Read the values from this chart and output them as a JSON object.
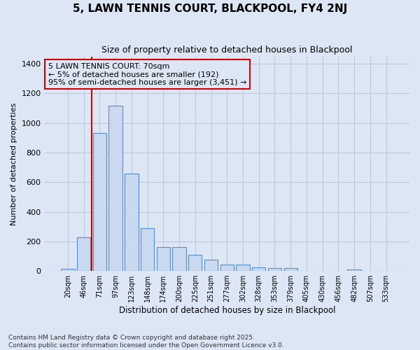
{
  "title": "5, LAWN TENNIS COURT, BLACKPOOL, FY4 2NJ",
  "subtitle": "Size of property relative to detached houses in Blackpool",
  "xlabel": "Distribution of detached houses by size in Blackpool",
  "ylabel": "Number of detached properties",
  "footnote": "Contains HM Land Registry data © Crown copyright and database right 2025.\nContains public sector information licensed under the Open Government Licence v3.0.",
  "bar_color": "#c9d9f0",
  "bar_edge_color": "#5b8ec4",
  "grid_color": "#c0c8d8",
  "background_color": "#dce6f5",
  "annotation_line_color": "#cc0000",
  "annotation_box_color": "#cc0000",
  "annotation_text": "5 LAWN TENNIS COURT: 70sqm\n← 5% of detached houses are smaller (192)\n95% of semi-detached houses are larger (3,451) →",
  "property_bin_index": 2,
  "categories": [
    "20sqm",
    "46sqm",
    "71sqm",
    "97sqm",
    "123sqm",
    "148sqm",
    "174sqm",
    "200sqm",
    "225sqm",
    "251sqm",
    "277sqm",
    "302sqm",
    "328sqm",
    "353sqm",
    "379sqm",
    "405sqm",
    "430sqm",
    "456sqm",
    "482sqm",
    "507sqm",
    "533sqm"
  ],
  "values": [
    15,
    228,
    930,
    1115,
    660,
    290,
    160,
    160,
    110,
    75,
    42,
    42,
    25,
    20,
    20,
    0,
    0,
    0,
    8,
    0,
    0
  ],
  "ylim": [
    0,
    1450
  ],
  "yticks": [
    0,
    200,
    400,
    600,
    800,
    1000,
    1200,
    1400
  ]
}
